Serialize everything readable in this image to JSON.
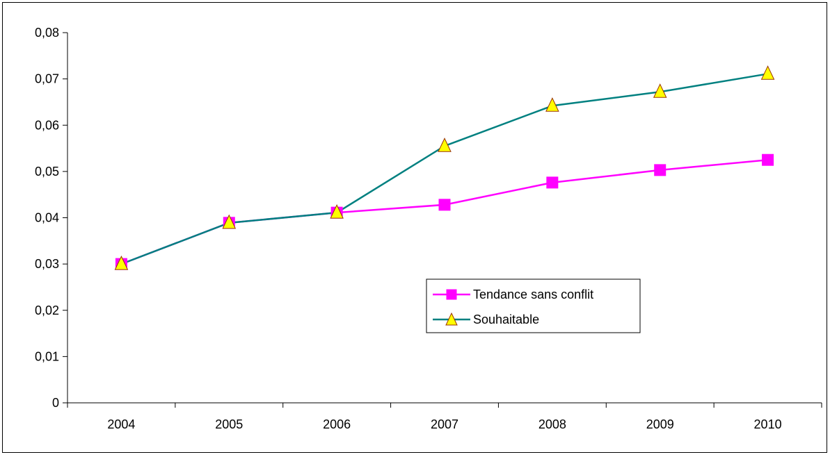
{
  "chart_data": {
    "type": "line",
    "categories": [
      "2004",
      "2005",
      "2006",
      "2007",
      "2008",
      "2009",
      "2010"
    ],
    "ylim": [
      0,
      0.08
    ],
    "yticks": [
      "0",
      "0,01",
      "0,02",
      "0,03",
      "0,04",
      "0,05",
      "0,06",
      "0,07",
      "0,08"
    ],
    "ytick_values": [
      0,
      0.01,
      0.02,
      0.03,
      0.04,
      0.05,
      0.06,
      0.07,
      0.08
    ],
    "grid": false,
    "legend_position": "center-right",
    "series": [
      {
        "name": "Tendance sans conflit",
        "color": "#ff00ff",
        "marker": "square",
        "values": [
          0.03,
          0.0389,
          0.0411,
          0.0428,
          0.0476,
          0.0503,
          0.0525
        ]
      },
      {
        "name": "Souhaitable",
        "color": "#008080",
        "marker": "triangle",
        "marker_fill": "#ffff00",
        "values": [
          0.03,
          0.0389,
          0.0411,
          0.0555,
          0.0642,
          0.0672,
          0.0711
        ]
      }
    ]
  }
}
